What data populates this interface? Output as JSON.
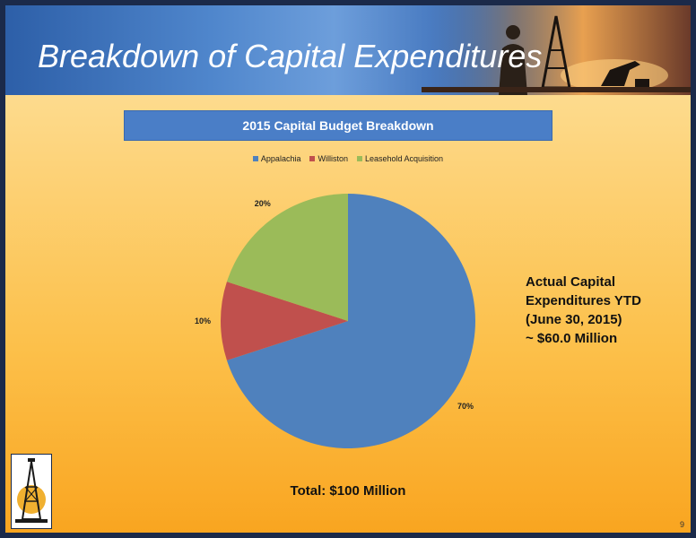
{
  "slide": {
    "title": "Breakdown of Capital Expenditures",
    "page_number": "9",
    "side_note": {
      "lines": [
        "Actual Capital",
        "Expenditures YTD",
        "(June 30, 2015)",
        "~ $60.0 Million"
      ]
    },
    "total": "Total: $100 Million"
  },
  "chart_data": {
    "type": "pie",
    "title": "2015 Capital Budget Breakdown",
    "legend_position": "top",
    "slices": [
      {
        "name": "Appalachia",
        "value": 70,
        "label": "70%",
        "color": "#4f81bd"
      },
      {
        "name": "Williston",
        "value": 10,
        "label": "10%",
        "color": "#c0504d"
      },
      {
        "name": "Leasehold Acquisition",
        "value": 20,
        "label": "20%",
        "color": "#9bbb59"
      }
    ]
  }
}
